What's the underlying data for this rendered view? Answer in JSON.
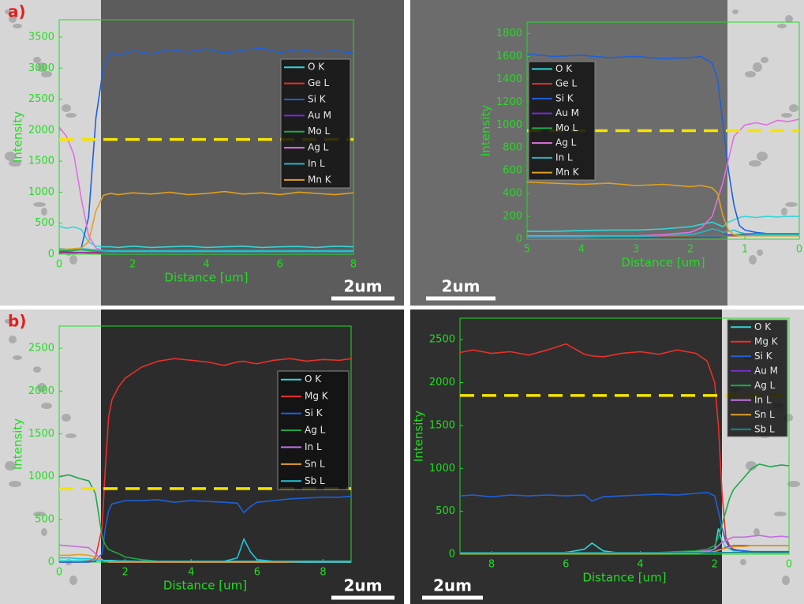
{
  "chart_data": [
    {
      "type": "line",
      "panel_label": "a)",
      "scale_bar": "2um",
      "x_label": "Distance [um]",
      "y_label": "Intensity",
      "axis_color": "#22dd22",
      "xlim": [
        0,
        8
      ],
      "xticks": [
        0,
        2,
        4,
        6,
        8
      ],
      "ylim": [
        0,
        3780
      ],
      "yticks": [
        0,
        500,
        1000,
        1500,
        2000,
        2500,
        3000,
        3500
      ],
      "reference_line": {
        "value": 1850,
        "color": "#f5e400"
      },
      "x": [
        0,
        0.2,
        0.4,
        0.6,
        0.8,
        1.0,
        1.2,
        1.4,
        1.6,
        2,
        2.5,
        3,
        3.5,
        4,
        4.5,
        5,
        5.5,
        6,
        6.5,
        7,
        7.5,
        8
      ],
      "series": [
        {
          "name": "O  K",
          "color": "#33d6d6",
          "values": [
            450,
            420,
            440,
            400,
            200,
            130,
            120,
            120,
            110,
            130,
            110,
            120,
            130,
            110,
            120,
            130,
            110,
            120,
            125,
            110,
            130,
            120
          ]
        },
        {
          "name": "Ge L",
          "color": "#e8302a",
          "values": [
            30,
            30,
            30,
            30,
            30,
            30,
            30,
            30,
            30,
            30,
            30,
            30,
            30,
            30,
            30,
            30,
            30,
            30,
            30,
            30,
            30,
            30
          ]
        },
        {
          "name": "Si K",
          "color": "#1f60d8",
          "values": [
            50,
            50,
            60,
            100,
            600,
            2200,
            3000,
            3250,
            3200,
            3280,
            3230,
            3300,
            3260,
            3310,
            3240,
            3290,
            3320,
            3250,
            3300,
            3260,
            3280,
            3240
          ]
        },
        {
          "name": "Au M",
          "color": "#7a2bd6",
          "values": [
            20,
            25,
            20,
            25,
            20,
            20,
            15,
            20,
            20,
            15,
            20,
            20,
            20,
            15,
            20,
            20,
            20,
            15,
            20,
            20,
            20,
            20
          ]
        },
        {
          "name": "Mo L",
          "color": "#1fa84a",
          "values": [
            60,
            60,
            60,
            70,
            60,
            50,
            40,
            40,
            40,
            40,
            40,
            40,
            40,
            40,
            40,
            40,
            40,
            40,
            40,
            40,
            40,
            40
          ]
        },
        {
          "name": "Ag L",
          "color": "#e070e0",
          "values": [
            2050,
            1900,
            1600,
            900,
            300,
            100,
            60,
            50,
            50,
            50,
            50,
            50,
            50,
            50,
            50,
            50,
            50,
            50,
            50,
            50,
            50,
            50
          ]
        },
        {
          "name": "In L",
          "color": "#26b5c5",
          "values": [
            90,
            80,
            80,
            90,
            80,
            70,
            60,
            60,
            60,
            60,
            60,
            60,
            60,
            60,
            60,
            60,
            60,
            60,
            60,
            60,
            60,
            60
          ]
        },
        {
          "name": "Mn K",
          "color": "#e0a020",
          "values": [
            80,
            80,
            90,
            100,
            200,
            700,
            950,
            980,
            960,
            990,
            970,
            1000,
            960,
            980,
            1010,
            970,
            990,
            960,
            1000,
            980,
            960,
            990
          ]
        }
      ]
    },
    {
      "type": "line",
      "scale_bar": "2um",
      "x_label": "Distance [um]",
      "y_label": "Intensity",
      "axis_color": "#22dd22",
      "xlim": [
        5,
        0
      ],
      "xticks": [
        5,
        4,
        3,
        2,
        1,
        0
      ],
      "ylim": [
        0,
        1900
      ],
      "yticks": [
        0,
        200,
        400,
        600,
        800,
        1000,
        1200,
        1400,
        1600,
        1800
      ],
      "reference_line": {
        "value": 950,
        "color": "#f5e400"
      },
      "x": [
        5,
        4.5,
        4,
        3.5,
        3,
        2.5,
        2,
        1.8,
        1.6,
        1.5,
        1.4,
        1.3,
        1.2,
        1.1,
        1.0,
        0.8,
        0.6,
        0.4,
        0.2,
        0
      ],
      "series": [
        {
          "name": "O  K",
          "color": "#33d6d6",
          "values": [
            70,
            70,
            75,
            80,
            80,
            90,
            110,
            130,
            150,
            130,
            110,
            150,
            170,
            190,
            200,
            190,
            200,
            195,
            200,
            200
          ]
        },
        {
          "name": "Ge L",
          "color": "#e8302a",
          "values": [
            20,
            20,
            20,
            20,
            20,
            20,
            20,
            20,
            25,
            30,
            30,
            30,
            30,
            30,
            30,
            30,
            30,
            30,
            30,
            30
          ]
        },
        {
          "name": "Si K",
          "color": "#1f60d8",
          "values": [
            1620,
            1600,
            1610,
            1590,
            1600,
            1580,
            1590,
            1600,
            1540,
            1400,
            1000,
            600,
            300,
            120,
            80,
            60,
            50,
            50,
            50,
            50
          ]
        },
        {
          "name": "Au M",
          "color": "#7a2bd6",
          "values": [
            15,
            15,
            15,
            15,
            15,
            15,
            15,
            20,
            20,
            20,
            30,
            40,
            40,
            40,
            40,
            40,
            40,
            40,
            40,
            40
          ]
        },
        {
          "name": "Mo L",
          "color": "#1fa84a",
          "values": [
            30,
            30,
            30,
            30,
            30,
            30,
            30,
            30,
            30,
            30,
            30,
            30,
            40,
            40,
            50,
            50,
            50,
            50,
            50,
            50
          ]
        },
        {
          "name": "Ag L",
          "color": "#e070e0",
          "values": [
            30,
            30,
            30,
            30,
            30,
            40,
            60,
            100,
            200,
            350,
            500,
            700,
            900,
            950,
            1000,
            1020,
            1000,
            1040,
            1030,
            1050
          ]
        },
        {
          "name": "In L",
          "color": "#26b5c5",
          "values": [
            20,
            20,
            20,
            25,
            25,
            30,
            40,
            60,
            90,
            80,
            60,
            70,
            80,
            60,
            50,
            40,
            40,
            40,
            40,
            40
          ]
        },
        {
          "name": "Mn K",
          "color": "#e0a020",
          "values": [
            500,
            490,
            480,
            490,
            470,
            480,
            460,
            470,
            450,
            400,
            200,
            80,
            40,
            30,
            30,
            30,
            30,
            30,
            30,
            30
          ]
        }
      ]
    },
    {
      "type": "line",
      "panel_label": "b)",
      "scale_bar": "2um",
      "x_label": "Distance [um]",
      "y_label": "Intensity",
      "axis_color": "#22dd22",
      "xlim": [
        0,
        8.85
      ],
      "xticks": [
        0,
        2,
        4,
        6,
        8
      ],
      "ylim": [
        0,
        2760
      ],
      "yticks": [
        0,
        500,
        1000,
        1500,
        2000,
        2500
      ],
      "reference_line": {
        "value": 860,
        "color": "#f5e400"
      },
      "x": [
        0,
        0.3,
        0.6,
        0.9,
        1.1,
        1.3,
        1.4,
        1.5,
        1.6,
        1.8,
        2,
        2.5,
        3,
        3.5,
        4,
        4.5,
        5,
        5.4,
        5.6,
        5.8,
        6,
        6.5,
        7,
        7.5,
        8,
        8.5,
        8.85
      ],
      "series": [
        {
          "name": "O  K",
          "color": "#33d6d6",
          "values": [
            20,
            20,
            20,
            20,
            20,
            20,
            20,
            20,
            20,
            15,
            15,
            10,
            10,
            10,
            10,
            10,
            10,
            10,
            10,
            10,
            10,
            10,
            10,
            10,
            10,
            10,
            10
          ]
        },
        {
          "name": "Mg K",
          "color": "#e8302a",
          "values": [
            0,
            0,
            0,
            10,
            50,
            400,
            1100,
            1700,
            1900,
            2050,
            2150,
            2280,
            2350,
            2380,
            2360,
            2340,
            2300,
            2340,
            2350,
            2330,
            2320,
            2360,
            2380,
            2350,
            2370,
            2360,
            2380
          ]
        },
        {
          "name": "Si K",
          "color": "#1f60d8",
          "values": [
            0,
            0,
            0,
            0,
            10,
            100,
            400,
            600,
            680,
            700,
            720,
            720,
            730,
            700,
            720,
            710,
            700,
            690,
            580,
            650,
            700,
            720,
            740,
            750,
            760,
            760,
            770
          ]
        },
        {
          "name": "Ag L",
          "color": "#1fa84a",
          "values": [
            1000,
            1020,
            980,
            950,
            800,
            300,
            200,
            150,
            130,
            100,
            60,
            30,
            10,
            0,
            0,
            0,
            0,
            0,
            0,
            0,
            0,
            0,
            0,
            0,
            0,
            0,
            0
          ]
        },
        {
          "name": "In L",
          "color": "#c070e0",
          "values": [
            200,
            190,
            180,
            170,
            100,
            30,
            10,
            0,
            0,
            0,
            0,
            0,
            0,
            0,
            0,
            0,
            0,
            0,
            0,
            0,
            0,
            0,
            0,
            0,
            0,
            0,
            0
          ]
        },
        {
          "name": "Sn L",
          "color": "#e0a020",
          "values": [
            80,
            80,
            90,
            80,
            60,
            30,
            10,
            0,
            0,
            0,
            0,
            0,
            0,
            0,
            0,
            0,
            0,
            0,
            0,
            0,
            0,
            0,
            0,
            0,
            0,
            0,
            0
          ]
        },
        {
          "name": "Sb L",
          "color": "#20c4d4",
          "values": [
            50,
            50,
            40,
            40,
            30,
            20,
            10,
            10,
            10,
            10,
            10,
            10,
            10,
            10,
            10,
            10,
            10,
            50,
            270,
            120,
            30,
            10,
            5,
            0,
            0,
            0,
            0
          ]
        }
      ]
    },
    {
      "type": "line",
      "scale_bar": "2um",
      "x_label": "Distance [um]",
      "y_label": "Intensity",
      "axis_color": "#22dd22",
      "xlim": [
        8.85,
        0
      ],
      "xticks": [
        8,
        6,
        4,
        2,
        0
      ],
      "ylim": [
        0,
        2750
      ],
      "yticks": [
        0,
        500,
        1000,
        1500,
        2000,
        2500
      ],
      "reference_line": {
        "value": 1850,
        "color": "#f5e400"
      },
      "x": [
        8.85,
        8.5,
        8,
        7.5,
        7,
        6.5,
        6,
        5.5,
        5.3,
        5,
        4.5,
        4,
        3.5,
        3,
        2.5,
        2.2,
        2,
        1.9,
        1.8,
        1.7,
        1.6,
        1.5,
        1.2,
        1,
        0.8,
        0.5,
        0.2,
        0
      ],
      "series": [
        {
          "name": "O  K",
          "color": "#33d6d6",
          "values": [
            10,
            10,
            10,
            10,
            10,
            10,
            20,
            60,
            130,
            40,
            10,
            10,
            10,
            10,
            20,
            30,
            60,
            300,
            150,
            80,
            60,
            40,
            30,
            30,
            20,
            20,
            20,
            20
          ]
        },
        {
          "name": "Mg K",
          "color": "#e8302a",
          "values": [
            2350,
            2380,
            2340,
            2360,
            2320,
            2380,
            2450,
            2330,
            2310,
            2300,
            2340,
            2360,
            2330,
            2380,
            2340,
            2250,
            2000,
            1500,
            700,
            200,
            100,
            60,
            30,
            20,
            20,
            20,
            20,
            20
          ]
        },
        {
          "name": "Si K",
          "color": "#1f60d8",
          "values": [
            680,
            690,
            670,
            690,
            680,
            690,
            680,
            690,
            620,
            670,
            680,
            690,
            700,
            690,
            710,
            720,
            680,
            500,
            300,
            150,
            80,
            50,
            40,
            30,
            30,
            30,
            30,
            30
          ]
        },
        {
          "name": "Au M",
          "color": "#7a2bd6",
          "values": [
            10,
            10,
            10,
            10,
            10,
            10,
            10,
            10,
            10,
            10,
            10,
            10,
            10,
            10,
            10,
            10,
            20,
            40,
            60,
            80,
            90,
            100,
            100,
            100,
            100,
            100,
            100,
            100
          ]
        },
        {
          "name": "Ag L",
          "color": "#1fa84a",
          "values": [
            20,
            20,
            20,
            20,
            20,
            20,
            20,
            20,
            20,
            20,
            20,
            20,
            20,
            30,
            40,
            60,
            100,
            200,
            350,
            500,
            650,
            750,
            900,
            1000,
            1050,
            1020,
            1040,
            1030
          ]
        },
        {
          "name": "In L",
          "color": "#c070e0",
          "values": [
            10,
            10,
            10,
            10,
            10,
            10,
            10,
            10,
            10,
            10,
            10,
            10,
            10,
            20,
            30,
            40,
            60,
            100,
            140,
            160,
            180,
            200,
            200,
            210,
            220,
            200,
            210,
            200
          ]
        },
        {
          "name": "Sn L",
          "color": "#e0a020",
          "values": [
            5,
            5,
            5,
            5,
            5,
            5,
            5,
            5,
            5,
            5,
            5,
            5,
            5,
            10,
            10,
            20,
            30,
            50,
            60,
            70,
            80,
            90,
            90,
            100,
            100,
            100,
            100,
            100
          ]
        },
        {
          "name": "Sb L",
          "color": "#1a8a8a",
          "values": [
            20,
            20,
            20,
            20,
            20,
            20,
            20,
            20,
            20,
            20,
            20,
            20,
            20,
            20,
            20,
            20,
            20,
            20,
            20,
            20,
            20,
            20,
            20,
            20,
            20,
            20,
            20,
            20
          ]
        }
      ]
    }
  ]
}
